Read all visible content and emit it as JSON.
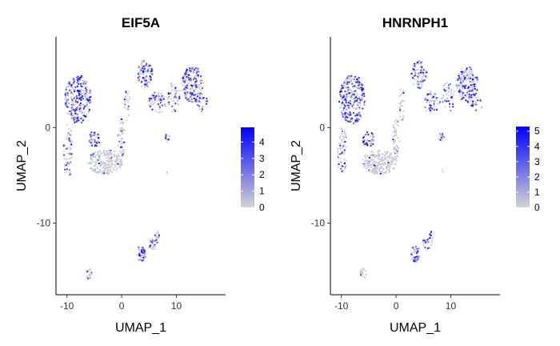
{
  "chart_data": [
    {
      "type": "scatter",
      "title": "EIF5A",
      "xlabel": "UMAP_1",
      "ylabel": "UMAP_2",
      "xlim": [
        -12,
        19
      ],
      "ylim": [
        -17.5,
        9.5
      ],
      "xticks": [
        -10,
        0,
        10
      ],
      "yticks": [
        0,
        -10
      ],
      "grid": false,
      "color_scale": {
        "low": "#d3d3d3",
        "high": "#0000ff",
        "min": 0,
        "max": 4.9,
        "ticks": [
          0,
          1,
          2,
          3,
          4
        ]
      },
      "legend_position": "right",
      "expression_hotspots": [
        "left-upper cluster",
        "top-right cluster",
        "small cluster near (-5,-1)"
      ]
    },
    {
      "type": "scatter",
      "title": "HNRNPH1",
      "xlabel": "UMAP_1",
      "ylabel": "UMAP_2",
      "xlim": [
        -12,
        19
      ],
      "ylim": [
        -17.5,
        9.5
      ],
      "xticks": [
        -10,
        0,
        10
      ],
      "yticks": [
        0,
        -10
      ],
      "grid": false,
      "color_scale": {
        "low": "#d3d3d3",
        "high": "#0000ff",
        "min": 0,
        "max": 5.3,
        "ticks": [
          0,
          1,
          2,
          3,
          4,
          5
        ]
      },
      "legend_position": "right",
      "expression_hotspots": [
        "left-upper cluster",
        "small cluster near (-5,-1)",
        "lower island near (5,-13)"
      ]
    }
  ],
  "clusters": [
    {
      "cx": -8,
      "cy": 3,
      "rx": 2.4,
      "ry": 2.6,
      "n": 260,
      "e": 0.55
    },
    {
      "cx": -9.8,
      "cy": -2.5,
      "rx": 0.9,
      "ry": 2.8,
      "n": 60,
      "e": 0.4
    },
    {
      "cx": -5,
      "cy": -1.2,
      "rx": 1.1,
      "ry": 0.8,
      "n": 35,
      "e": 0.7
    },
    {
      "cx": -3,
      "cy": -3.6,
      "rx": 3.2,
      "ry": 1.3,
      "n": 220,
      "e": 0.05
    },
    {
      "cx": 0,
      "cy": -1.2,
      "rx": 0.7,
      "ry": 2.2,
      "n": 50,
      "e": 0.1
    },
    {
      "cx": 1,
      "cy": 2.5,
      "rx": 0.5,
      "ry": 2.0,
      "n": 25,
      "e": 0.15
    },
    {
      "cx": 4.2,
      "cy": 5.6,
      "rx": 1.4,
      "ry": 1.5,
      "n": 90,
      "e": 0.45
    },
    {
      "cx": 6.5,
      "cy": 2.6,
      "rx": 1.6,
      "ry": 1.2,
      "n": 55,
      "e": 0.45
    },
    {
      "cx": 9.5,
      "cy": 3.2,
      "rx": 1.2,
      "ry": 1.6,
      "n": 50,
      "e": 0.35
    },
    {
      "cx": 13,
      "cy": 4.5,
      "rx": 2.0,
      "ry": 1.9,
      "n": 190,
      "e": 0.4
    },
    {
      "cx": 8.3,
      "cy": -1.0,
      "rx": 0.6,
      "ry": 0.5,
      "n": 12,
      "e": 0.4
    },
    {
      "cx": 14.8,
      "cy": 2.5,
      "rx": 1.1,
      "ry": 0.8,
      "n": 25,
      "e": 0.35
    },
    {
      "cx": 3.6,
      "cy": -13.2,
      "rx": 0.8,
      "ry": 0.9,
      "n": 50,
      "e": 0.45
    },
    {
      "cx": 5.6,
      "cy": -12.2,
      "rx": 1.0,
      "ry": 0.6,
      "n": 25,
      "e": 0.3
    },
    {
      "cx": 6.5,
      "cy": -11.3,
      "rx": 0.4,
      "ry": 0.5,
      "n": 12,
      "e": 0.3
    },
    {
      "cx": -6,
      "cy": -15.3,
      "rx": 0.6,
      "ry": 0.6,
      "n": 20,
      "e": 0.2
    },
    {
      "cx": 8.4,
      "cy": -4.6,
      "rx": 0.2,
      "ry": 0.2,
      "n": 2,
      "e": 0.1
    }
  ]
}
